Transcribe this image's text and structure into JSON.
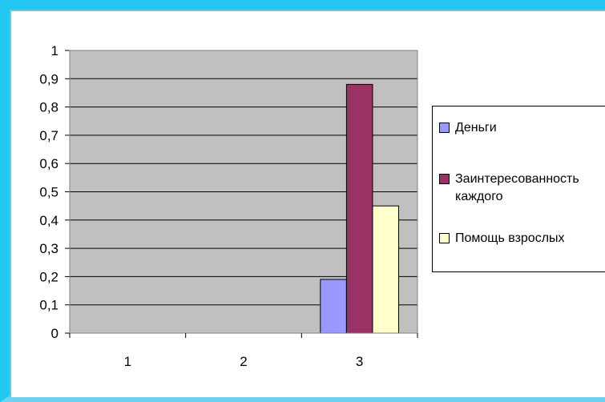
{
  "chart_data": {
    "type": "bar",
    "categories": [
      "1",
      "2",
      "3"
    ],
    "series": [
      {
        "name": "Деньги",
        "values": [
          0,
          0,
          0.19
        ],
        "color": "#9999ff"
      },
      {
        "name": "Заинтересованность каждого",
        "values": [
          0,
          0,
          0.88
        ],
        "color": "#993366"
      },
      {
        "name": "Помощь взрослых",
        "values": [
          0,
          0,
          0.45
        ],
        "color": "#ffffcc"
      }
    ],
    "y_ticks": [
      "0",
      "0,1",
      "0,2",
      "0,3",
      "0,4",
      "0,5",
      "0,6",
      "0,7",
      "0,8",
      "0,9",
      "1"
    ],
    "ylim": [
      0,
      1
    ],
    "grid": true,
    "plot_background": "#c0c0c0",
    "legend_position": "right",
    "title": "",
    "xlabel": "",
    "ylabel": ""
  }
}
